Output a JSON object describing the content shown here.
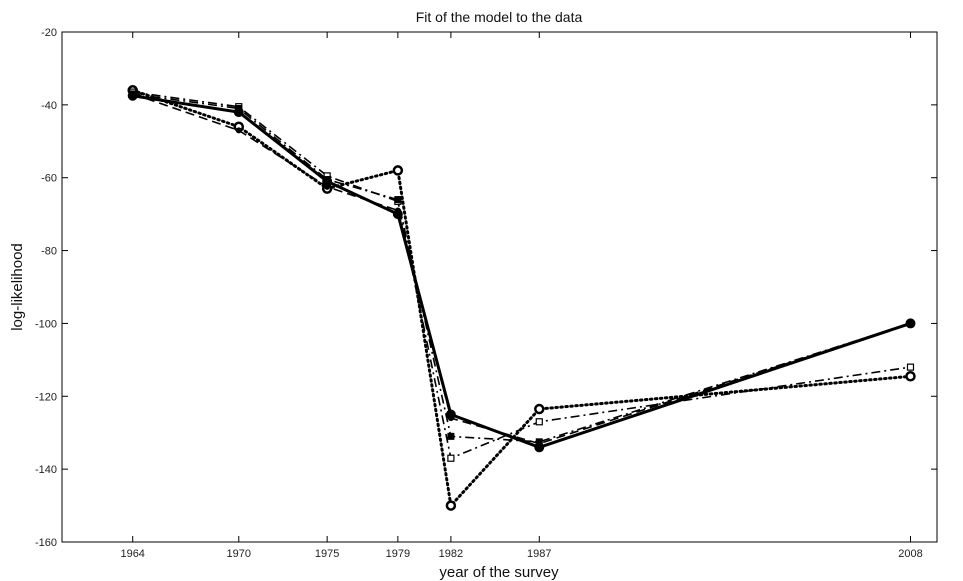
{
  "chart_data": {
    "type": "line",
    "title": "Fit of the model to the data",
    "xlabel": "year of the survey",
    "ylabel": "log-likelihood",
    "x": [
      1964,
      1970,
      1975,
      1979,
      1982,
      1987,
      2008
    ],
    "xticks": [
      "1964",
      "1970",
      "1975",
      "1979",
      "1982",
      "1987",
      "2008"
    ],
    "yticks": [
      "-20",
      "-40",
      "-60",
      "-80",
      "-100",
      "-120",
      "-140",
      "-160"
    ],
    "xlim": [
      1960,
      2009.5
    ],
    "ylim": [
      -160,
      -20
    ],
    "grid": false,
    "series": [
      {
        "style": "solid",
        "marker": "filled-circle",
        "color": "#000000",
        "values": [
          -37.5,
          -42,
          -61,
          -70,
          -125,
          -134,
          -100
        ]
      },
      {
        "style": "dotted",
        "marker": "open-circle",
        "color": "#000000",
        "values": [
          -36,
          -46,
          -63,
          -58,
          -150,
          -123.5,
          -114.5
        ]
      },
      {
        "style": "dashdot",
        "marker": "open-square",
        "color": "#000000",
        "values": [
          -36.5,
          -40.5,
          -59.5,
          -66.5,
          -137,
          -127,
          -112
        ]
      },
      {
        "style": "dashdot",
        "marker": "filled-square",
        "color": "#000000",
        "values": [
          -37,
          -41,
          -60.5,
          -66,
          -131,
          -132.5,
          -100
        ]
      },
      {
        "style": "dashed",
        "marker": "filled-circle-small",
        "color": "#000000",
        "values": [
          -37,
          -47,
          -62.5,
          -69,
          -126,
          -133,
          -100
        ]
      }
    ]
  }
}
